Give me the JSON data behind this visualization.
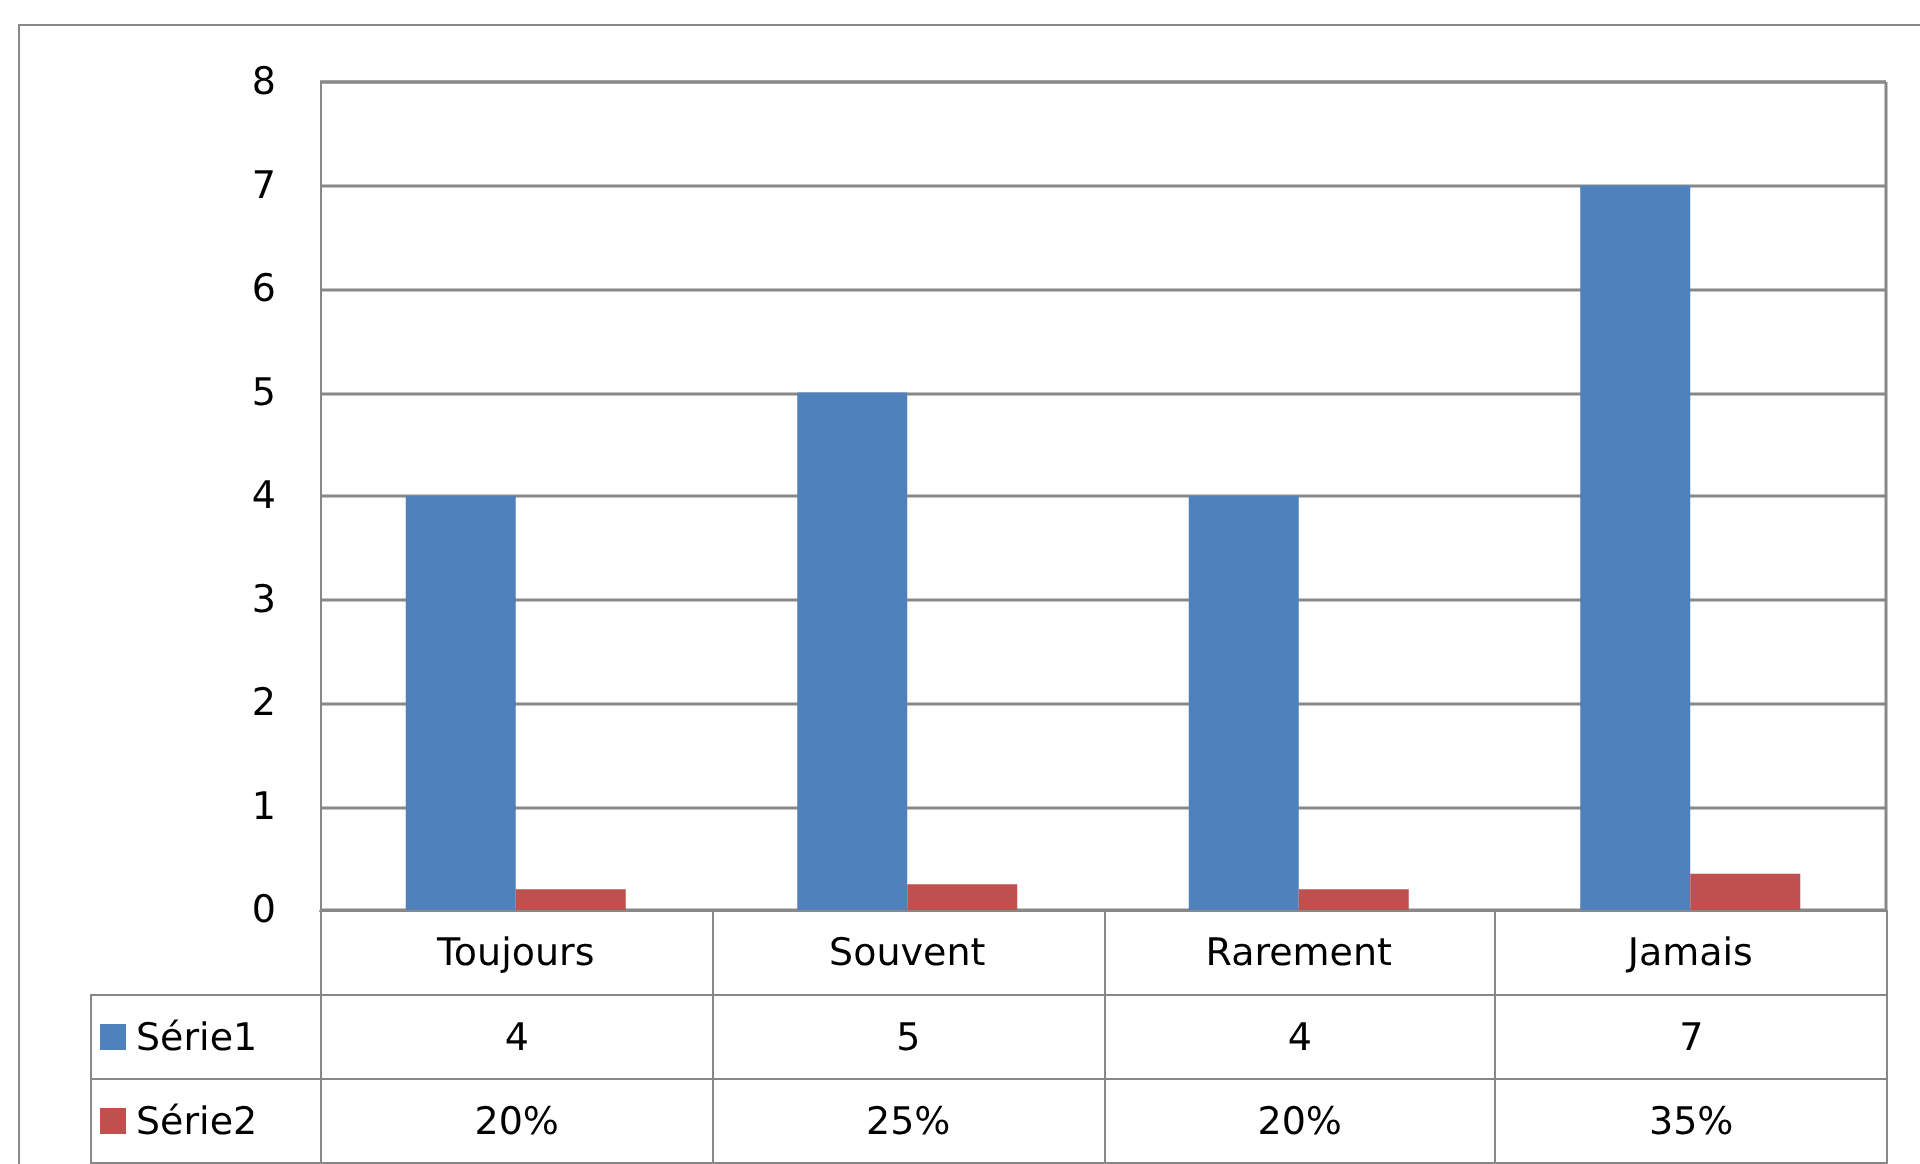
{
  "chart_data": {
    "type": "bar",
    "categories": [
      "Toujours",
      "Souvent",
      "Rarement",
      "Jamais"
    ],
    "series": [
      {
        "name": "Série1",
        "color": "#4f81bd",
        "values": [
          4,
          5,
          4,
          7
        ],
        "value_labels": [
          "4",
          "5",
          "4",
          "7"
        ]
      },
      {
        "name": "Série2",
        "color": "#c0504d",
        "values": [
          0.2,
          0.25,
          0.2,
          0.35
        ],
        "value_labels": [
          "20%",
          "25%",
          "20%",
          "35%"
        ]
      }
    ],
    "ylim": [
      0,
      8
    ],
    "yticks": [
      0,
      1,
      2,
      3,
      4,
      5,
      6,
      7,
      8
    ],
    "grid": "y",
    "legend": "bottom"
  }
}
